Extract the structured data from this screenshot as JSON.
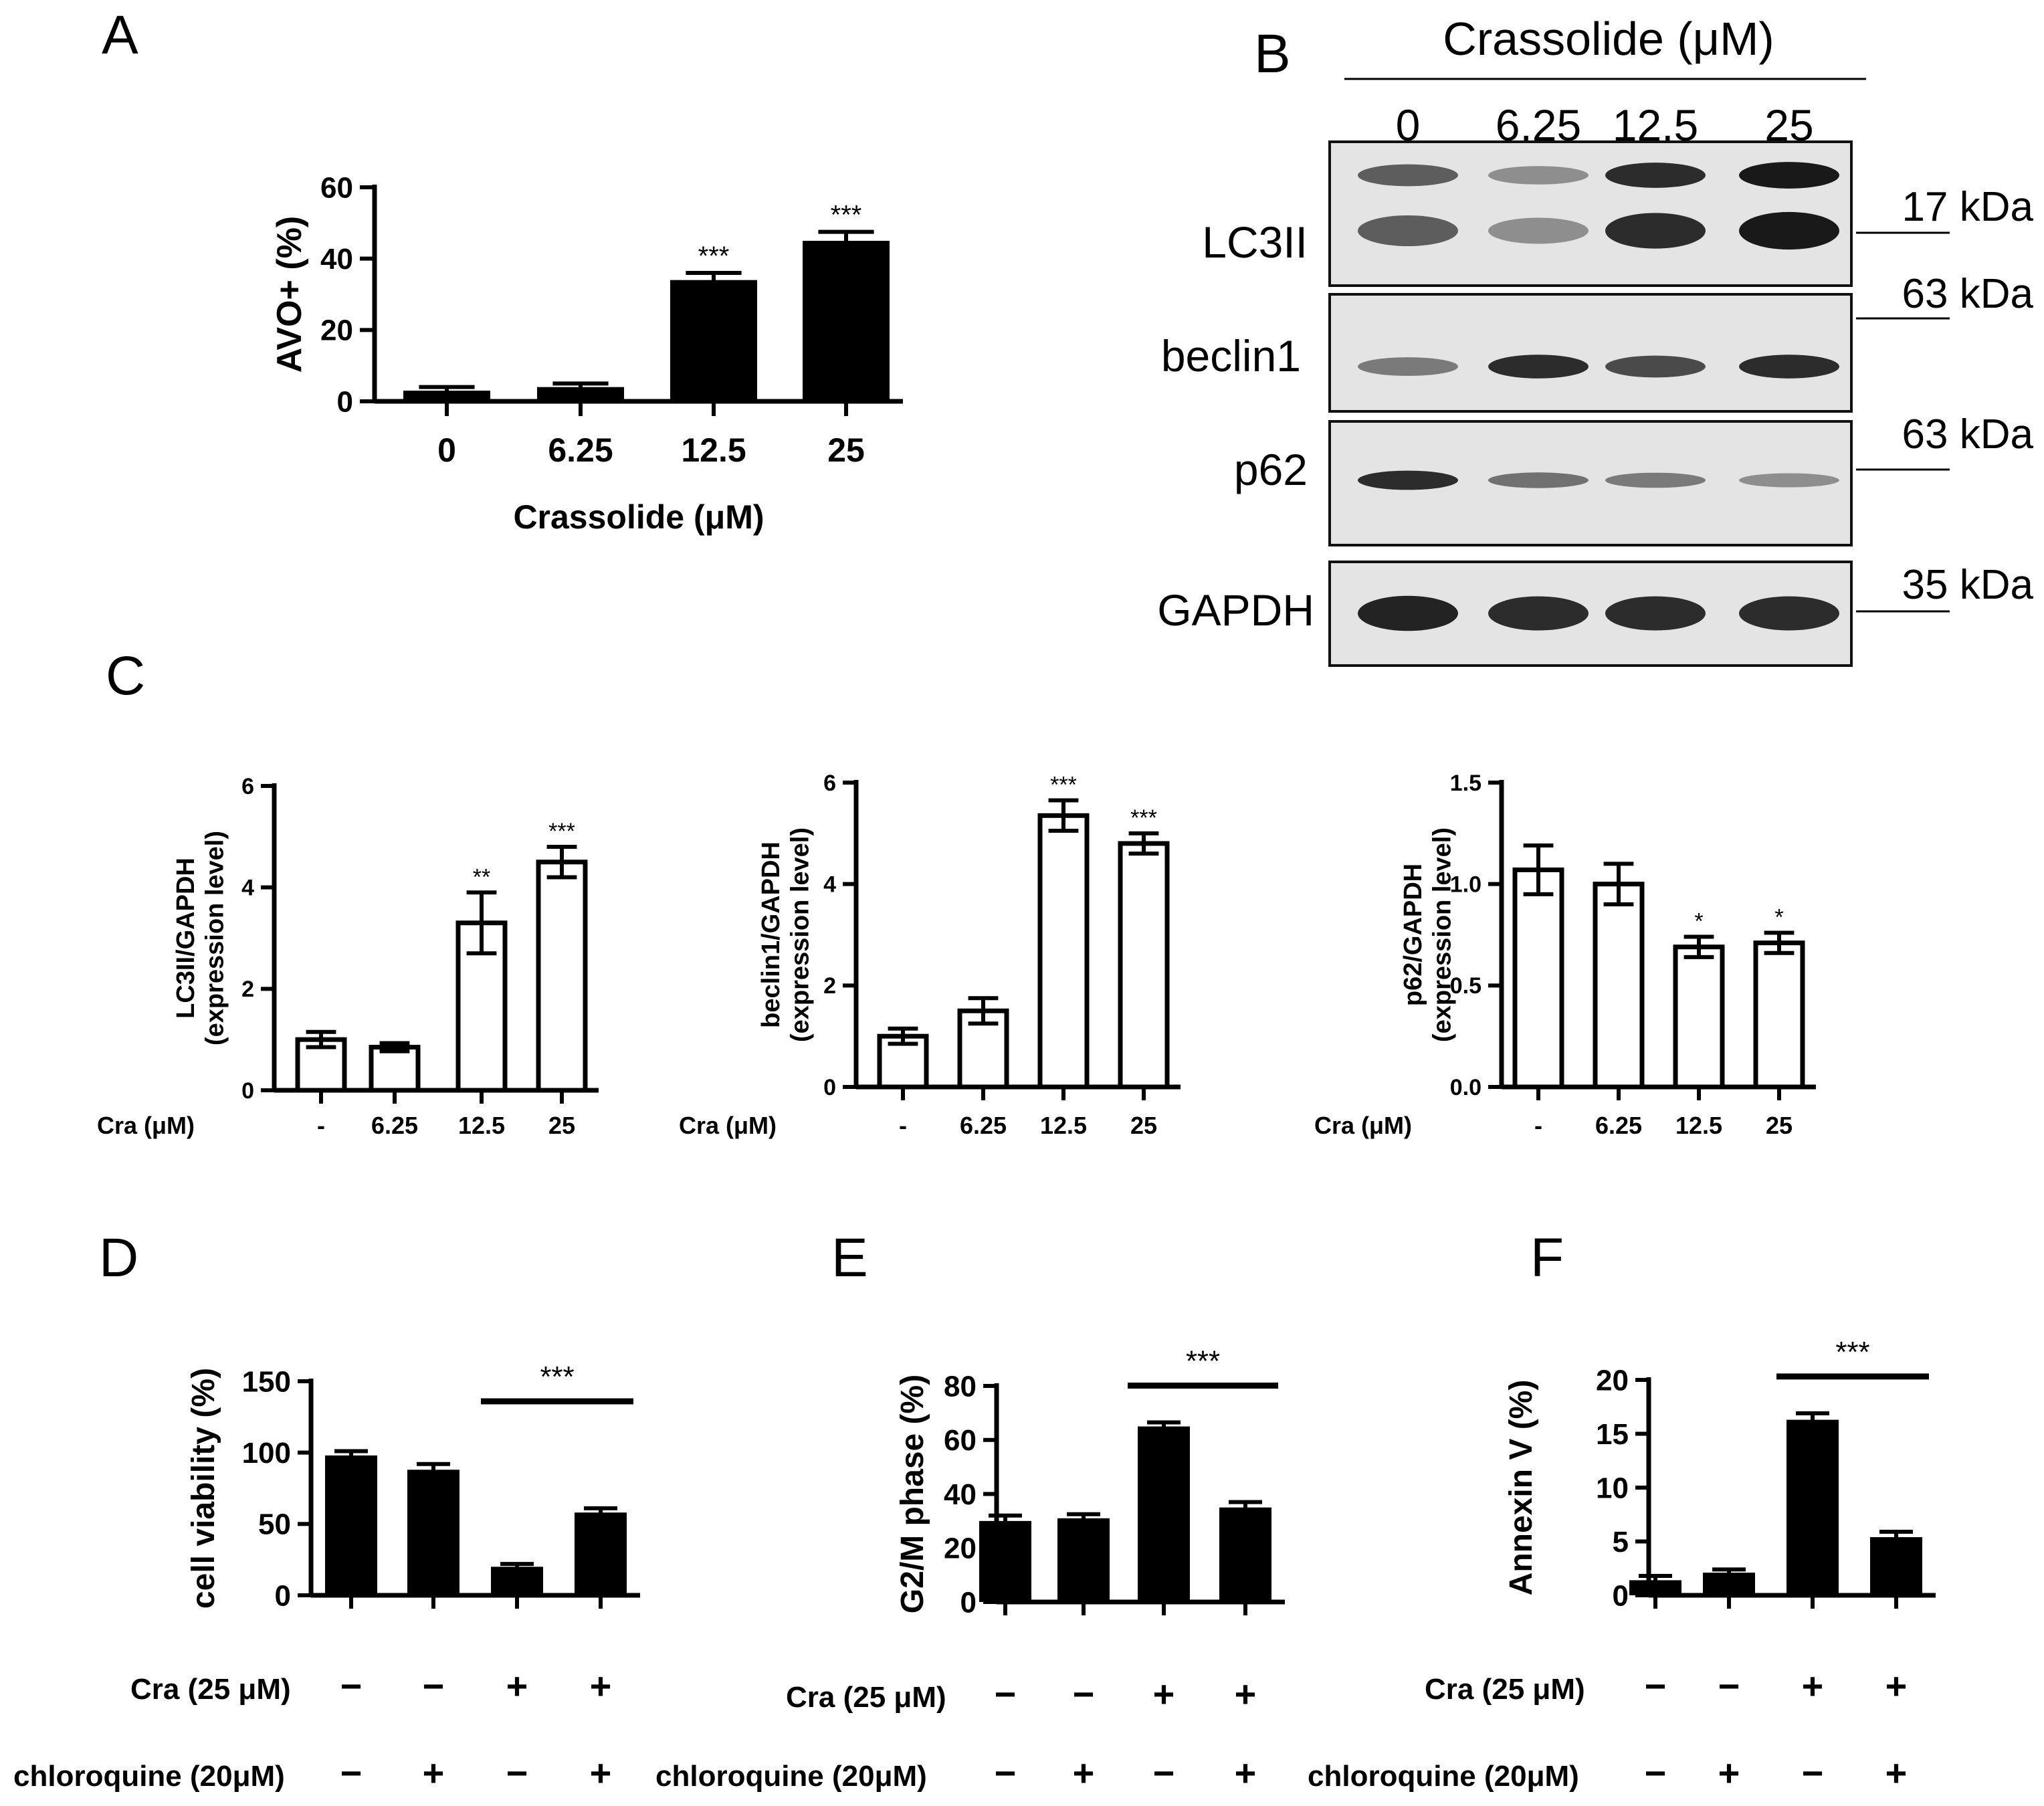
{
  "panel_labels": {
    "A": "A",
    "B": "B",
    "C": "C",
    "D": "D",
    "E": "E",
    "F": "F"
  },
  "blot": {
    "header": "Crassolide (μM)",
    "lanes": [
      "0",
      "6.25",
      "12.5",
      "25"
    ],
    "rows": [
      {
        "label": "LC3II",
        "mw": "17 kDa",
        "bands": [
          0.6,
          0.35,
          0.85,
          0.95
        ]
      },
      {
        "label": "beclin1",
        "mw": "63 kDa",
        "bands": [
          0.45,
          0.85,
          0.7,
          0.85
        ]
      },
      {
        "label": "p62",
        "mw": "63 kDa",
        "bands": [
          0.85,
          0.5,
          0.45,
          0.35
        ]
      },
      {
        "label": "GAPDH",
        "mw": "35 kDa",
        "bands": [
          0.9,
          0.85,
          0.85,
          0.85
        ]
      }
    ]
  },
  "chart_data": [
    {
      "id": "A",
      "type": "bar",
      "style": "filled",
      "categories": [
        "0",
        "6.25",
        "12.5",
        "25"
      ],
      "values": [
        3,
        4,
        34,
        45
      ],
      "errors": [
        1,
        1,
        2,
        2.5
      ],
      "sig": [
        "",
        "",
        "***",
        "***"
      ],
      "ylim": [
        0,
        60
      ],
      "yticks": [
        "0",
        "20",
        "40",
        "60"
      ],
      "ylabel": "AVO+ (%)",
      "xlabel": "Crassolide (μM)"
    },
    {
      "id": "C1",
      "type": "bar",
      "style": "open",
      "categories": [
        "-",
        "6.25",
        "12.5",
        "25"
      ],
      "values": [
        1.0,
        0.85,
        3.3,
        4.5
      ],
      "errors": [
        0.15,
        0.08,
        0.6,
        0.3
      ],
      "sig": [
        "",
        "",
        "**",
        "***"
      ],
      "ylim": [
        0,
        6
      ],
      "yticks": [
        "0",
        "2",
        "4",
        "6"
      ],
      "ylabel": [
        "LC3II/GAPDH",
        "(expression level)"
      ],
      "row_label": "Cra (μM)"
    },
    {
      "id": "C2",
      "type": "bar",
      "style": "open",
      "categories": [
        "-",
        "6.25",
        "12.5",
        "25"
      ],
      "values": [
        1.0,
        1.5,
        5.35,
        4.8
      ],
      "errors": [
        0.15,
        0.25,
        0.3,
        0.2
      ],
      "sig": [
        "",
        "",
        "***",
        "***"
      ],
      "ylim": [
        0,
        6
      ],
      "yticks": [
        "0",
        "2",
        "4",
        "6"
      ],
      "ylabel": [
        "beclin1/GAPDH",
        "(expression level)"
      ],
      "row_label": "Cra (μM)"
    },
    {
      "id": "C3",
      "type": "bar",
      "style": "open",
      "categories": [
        "-",
        "6.25",
        "12.5",
        "25"
      ],
      "values": [
        1.07,
        1.0,
        0.69,
        0.71
      ],
      "errors": [
        0.12,
        0.1,
        0.05,
        0.05
      ],
      "sig": [
        "",
        "",
        "*",
        "*"
      ],
      "ylim": [
        0,
        1.5
      ],
      "yticks": [
        "0.0",
        "0.5",
        "1.0",
        "1.5"
      ],
      "ylabel": [
        "p62/GAPDH",
        "(expression level)"
      ],
      "row_label": "Cra (μM)"
    },
    {
      "id": "D",
      "type": "bar",
      "style": "filled",
      "values": [
        98,
        88,
        20,
        58
      ],
      "errors": [
        3,
        4,
        2,
        3
      ],
      "ylim": [
        0,
        150
      ],
      "yticks": [
        "0",
        "50",
        "100",
        "150"
      ],
      "ylabel": "cell viability (%)",
      "sig_bracket": "***",
      "bracket_bars": [
        2,
        3
      ],
      "rows": [
        {
          "label": "Cra (25 μM)",
          "signs": [
            "−",
            "−",
            "+",
            "+"
          ]
        },
        {
          "label": "chloroquine (20μM)",
          "signs": [
            "−",
            "+",
            "−",
            "+"
          ]
        }
      ]
    },
    {
      "id": "E",
      "type": "bar",
      "style": "filled",
      "values": [
        30,
        31,
        65,
        35
      ],
      "errors": [
        2,
        1.5,
        1.5,
        2
      ],
      "ylim": [
        0,
        80
      ],
      "yticks": [
        "0",
        "20",
        "40",
        "60",
        "80"
      ],
      "ylabel": "G2/M phase (%)",
      "sig_bracket": "***",
      "bracket_bars": [
        2,
        3
      ],
      "rows": [
        {
          "label": "Cra (25 μM)",
          "signs": [
            "−",
            "−",
            "+",
            "+"
          ]
        },
        {
          "label": "chloroquine  (20μM)",
          "signs": [
            "−",
            "+",
            "−",
            "+"
          ]
        }
      ]
    },
    {
      "id": "F",
      "type": "bar",
      "style": "filled",
      "values": [
        1.4,
        2.1,
        16.3,
        5.4
      ],
      "errors": [
        0.4,
        0.3,
        0.6,
        0.5
      ],
      "ylim": [
        0,
        20
      ],
      "yticks": [
        "0",
        "5",
        "10",
        "15",
        "20"
      ],
      "ylabel": "Annexin V (%)",
      "sig_bracket": "***",
      "bracket_bars": [
        2,
        3
      ],
      "rows": [
        {
          "label": "Cra (25 μM)",
          "signs": [
            "−",
            "−",
            "+",
            "+"
          ]
        },
        {
          "label": "chloroquine (20μM)",
          "signs": [
            "−",
            "+",
            "−",
            "+"
          ]
        }
      ]
    }
  ]
}
